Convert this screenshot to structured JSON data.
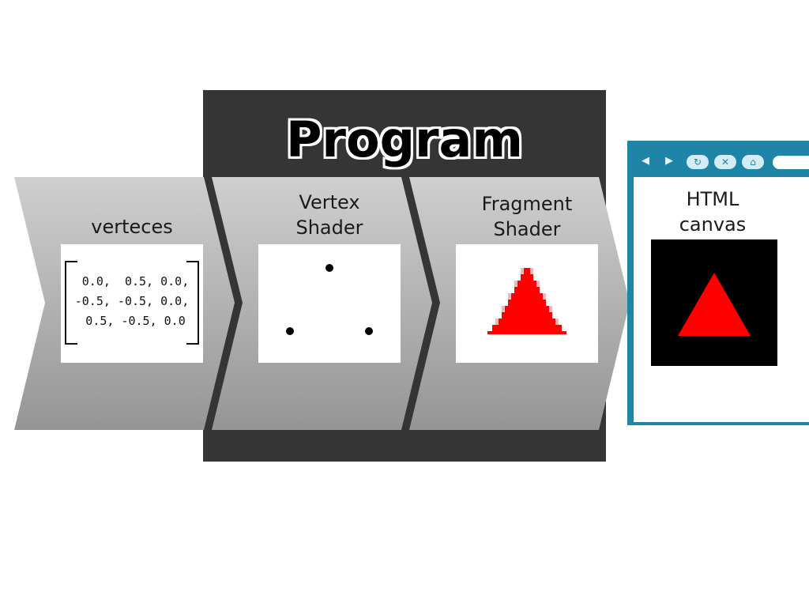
{
  "program": {
    "title": "Program"
  },
  "stages": {
    "input": {
      "label": "verteces",
      "matrix_rows": [
        " 0.0,  0.5, 0.0,",
        "-0.5, -0.5, 0.0,",
        " 0.5, -0.5, 0.0"
      ]
    },
    "vertex_shader": {
      "label_line1": "Vertex",
      "label_line2": "Shader"
    },
    "fragment_shader": {
      "label_line1": "Fragment",
      "label_line2": "Shader"
    }
  },
  "output": {
    "label_line1": "HTML",
    "label_line2": "canvas",
    "browser_buttons": [
      "back-icon",
      "forward-icon",
      "reload-icon",
      "close-icon",
      "home-icon"
    ]
  },
  "colors": {
    "program_bg": "#353535",
    "arrow_light": "#cccccc",
    "arrow_dark": "#999999",
    "triangle": "#ff0000",
    "browser_frame": "#1f85a6"
  }
}
